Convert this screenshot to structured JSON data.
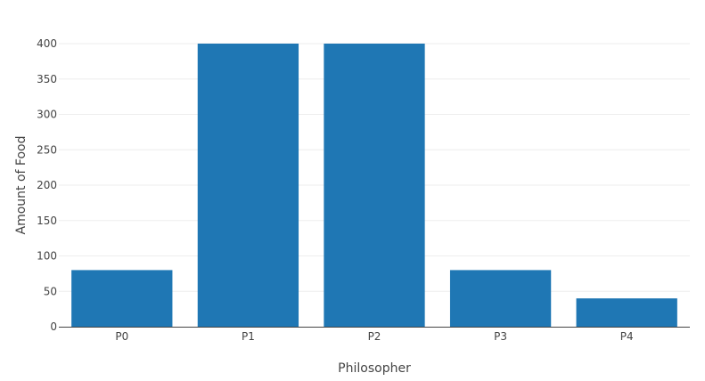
{
  "chart_data": {
    "type": "bar",
    "categories": [
      "P0",
      "P1",
      "P2",
      "P3",
      "P4"
    ],
    "values": [
      80,
      400,
      400,
      80,
      40
    ],
    "xlabel": "Philosopher",
    "ylabel": "Amount of Food",
    "ylim": [
      0,
      400
    ],
    "yticks": [
      0,
      50,
      100,
      150,
      200,
      250,
      300,
      350,
      400
    ],
    "grid": true,
    "legend": "none",
    "bar_color": "#1f77b4"
  }
}
